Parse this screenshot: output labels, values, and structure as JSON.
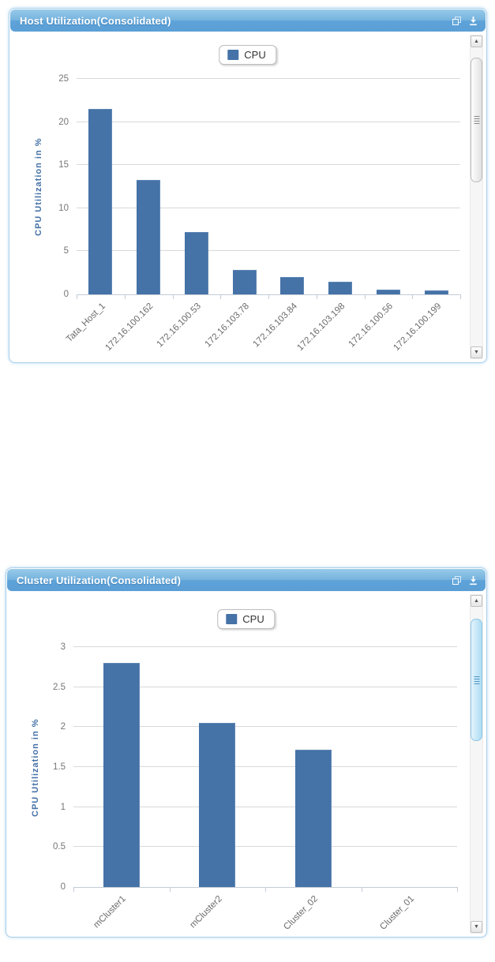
{
  "panels": [
    {
      "title": "Host Utilization(Consolidated)",
      "legend_label": "CPU",
      "header_icons": [
        "popup-icon",
        "download-icon"
      ],
      "has_vertical_scrollbar": true
    },
    {
      "title": "Cluster Utilization(Consolidated)",
      "legend_label": "CPU",
      "header_icons": [
        "popup-icon",
        "download-icon"
      ],
      "has_vertical_scrollbar": true
    }
  ],
  "colors": {
    "bar": "#4572a7",
    "header_gradient_top": "#96cae9",
    "header_gradient_bottom": "#5b9fd6",
    "axis_title": "#4572a7",
    "panel_border": "#abd0ea"
  },
  "chart_data": [
    {
      "type": "bar",
      "title": "Host Utilization(Consolidated)",
      "categories": [
        "Tata_Host_1",
        "172.16.100.162",
        "172.16.100.53",
        "172.16.103.78",
        "172.16.103.84",
        "172.16.103.198",
        "172.16.100.56",
        "172.16.100.199"
      ],
      "values": [
        21.5,
        13.3,
        7.2,
        2.8,
        2,
        1.5,
        0.55,
        0.45
      ],
      "xlabel": "",
      "ylabel": "CPU Utilization in %",
      "ylim": [
        0,
        25
      ],
      "ytick_step": 5,
      "yticks": [
        0,
        5,
        10,
        15,
        20,
        25
      ],
      "grid": true,
      "legend": [
        "CPU"
      ],
      "legend_position": "top-center",
      "bar_color": "#4572a7"
    },
    {
      "type": "bar",
      "title": "Cluster Utilization(Consolidated)",
      "categories": [
        "mCluster1",
        "mCluster2",
        "Cluster_02",
        "Cluster_01"
      ],
      "values": [
        2.8,
        2.05,
        1.72,
        0
      ],
      "xlabel": "",
      "ylabel": "CPU Utilization in %",
      "ylim": [
        0,
        3
      ],
      "ytick_step": 0.5,
      "yticks": [
        0,
        0.5,
        1,
        1.5,
        2,
        2.5,
        3
      ],
      "grid": true,
      "legend": [
        "CPU"
      ],
      "legend_position": "top-center",
      "bar_color": "#4572a7"
    }
  ]
}
